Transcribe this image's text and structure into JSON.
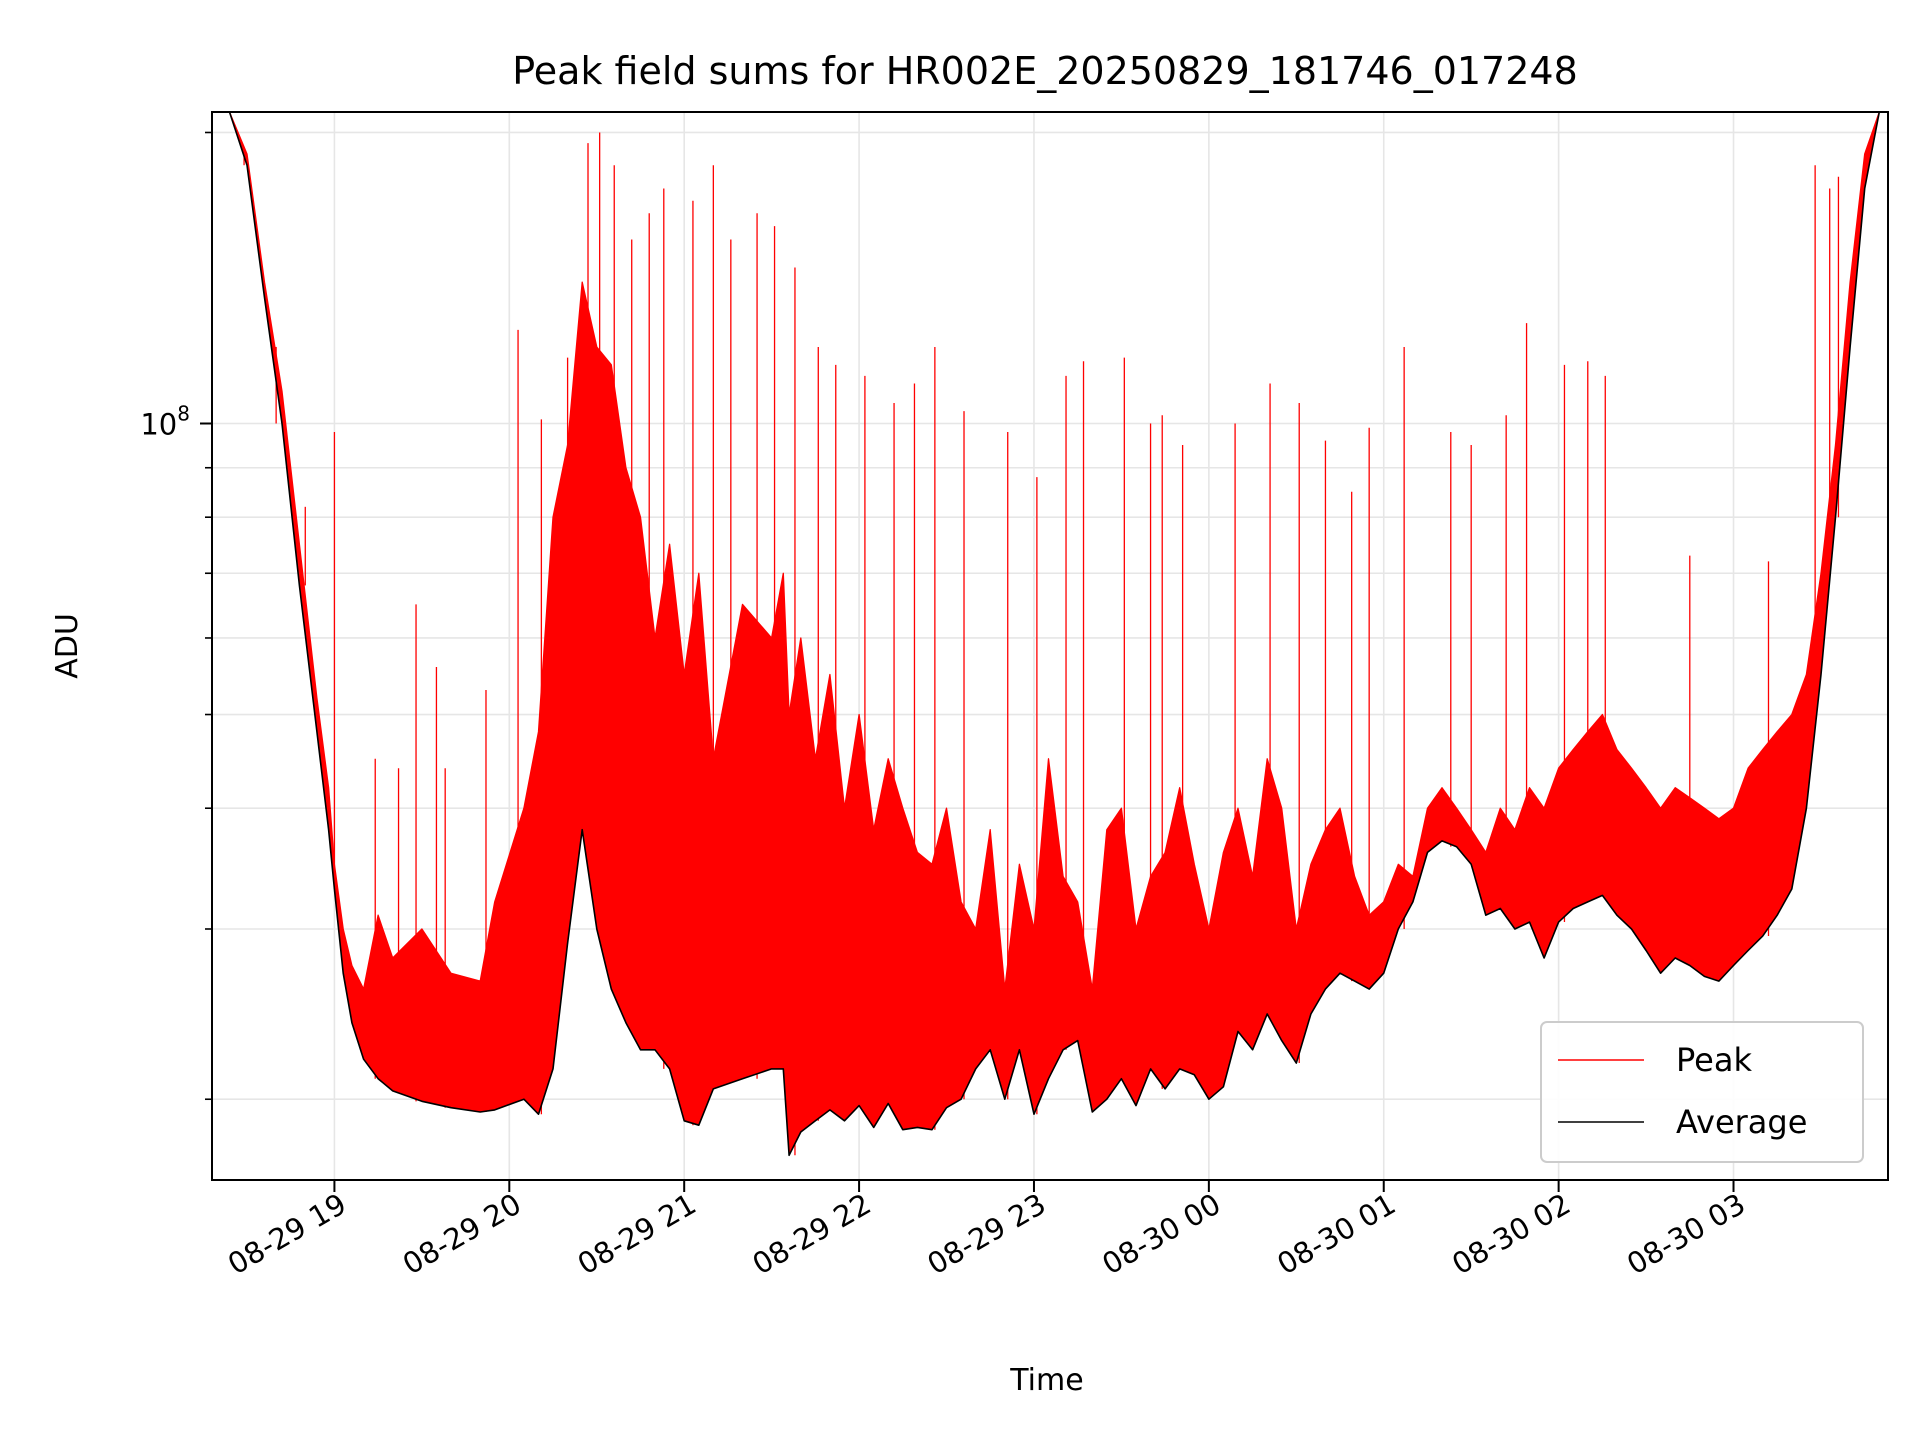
{
  "chart_data": {
    "type": "line",
    "title": "Peak field sums for HR002E_20250829_181746_017248",
    "xlabel": "Time",
    "ylabel": "ADU",
    "y_scale": "log",
    "ylim": [
      16500000,
      210000000
    ],
    "xlim": [
      "2025-08-29 18:18",
      "2025-08-30 03:53"
    ],
    "x_ticks": [
      "2025-08-29 19:00",
      "2025-08-29 20:00",
      "2025-08-29 21:00",
      "2025-08-29 22:00",
      "2025-08-29 23:00",
      "2025-08-30 00:00",
      "2025-08-30 01:00",
      "2025-08-30 02:00",
      "2025-08-30 03:00"
    ],
    "x_tick_labels": [
      "08-29 19",
      "08-29 20",
      "08-29 21",
      "08-29 22",
      "08-29 23",
      "08-30 00",
      "08-30 01",
      "08-30 02",
      "08-30 03"
    ],
    "y_major_tick": {
      "value": 100000000,
      "label_base": "10",
      "label_exp": "8"
    },
    "y_minor_ticks": [
      20000000,
      30000000,
      40000000,
      50000000,
      60000000,
      70000000,
      80000000,
      90000000,
      200000000
    ],
    "grid": true,
    "legend": {
      "position": "lower right",
      "entries": [
        "Peak",
        "Average"
      ]
    },
    "series": [
      {
        "name": "Average",
        "color": "#000000",
        "x": [
          "2025-08-29 18:18",
          "2025-08-29 18:24",
          "2025-08-29 18:30",
          "2025-08-29 18:36",
          "2025-08-29 18:42",
          "2025-08-29 18:48",
          "2025-08-29 18:54",
          "2025-08-29 18:58",
          "2025-08-29 19:00",
          "2025-08-29 19:03",
          "2025-08-29 19:06",
          "2025-08-29 19:10",
          "2025-08-29 19:15",
          "2025-08-29 19:20",
          "2025-08-29 19:30",
          "2025-08-29 19:40",
          "2025-08-29 19:50",
          "2025-08-29 19:55",
          "2025-08-29 20:05",
          "2025-08-29 20:10",
          "2025-08-29 20:15",
          "2025-08-29 20:20",
          "2025-08-29 20:25",
          "2025-08-29 20:30",
          "2025-08-29 20:35",
          "2025-08-29 20:40",
          "2025-08-29 20:45",
          "2025-08-29 20:50",
          "2025-08-29 20:55",
          "2025-08-29 21:00",
          "2025-08-29 21:05",
          "2025-08-29 21:10",
          "2025-08-29 21:20",
          "2025-08-29 21:30",
          "2025-08-29 21:34",
          "2025-08-29 21:36",
          "2025-08-29 21:40",
          "2025-08-29 21:45",
          "2025-08-29 21:50",
          "2025-08-29 21:55",
          "2025-08-29 22:00",
          "2025-08-29 22:05",
          "2025-08-29 22:10",
          "2025-08-29 22:15",
          "2025-08-29 22:20",
          "2025-08-29 22:25",
          "2025-08-29 22:30",
          "2025-08-29 22:35",
          "2025-08-29 22:40",
          "2025-08-29 22:45",
          "2025-08-29 22:50",
          "2025-08-29 22:55",
          "2025-08-29 23:00",
          "2025-08-29 23:05",
          "2025-08-29 23:10",
          "2025-08-29 23:15",
          "2025-08-29 23:20",
          "2025-08-29 23:25",
          "2025-08-29 23:30",
          "2025-08-29 23:35",
          "2025-08-29 23:40",
          "2025-08-29 23:45",
          "2025-08-29 23:50",
          "2025-08-29 23:55",
          "2025-08-30 00:00",
          "2025-08-30 00:05",
          "2025-08-30 00:10",
          "2025-08-30 00:15",
          "2025-08-30 00:20",
          "2025-08-30 00:25",
          "2025-08-30 00:30",
          "2025-08-30 00:35",
          "2025-08-30 00:40",
          "2025-08-30 00:45",
          "2025-08-30 00:50",
          "2025-08-30 00:55",
          "2025-08-30 01:00",
          "2025-08-30 01:05",
          "2025-08-30 01:10",
          "2025-08-30 01:15",
          "2025-08-30 01:20",
          "2025-08-30 01:25",
          "2025-08-30 01:30",
          "2025-08-30 01:35",
          "2025-08-30 01:40",
          "2025-08-30 01:45",
          "2025-08-30 01:50",
          "2025-08-30 01:55",
          "2025-08-30 02:00",
          "2025-08-30 02:05",
          "2025-08-30 02:10",
          "2025-08-30 02:15",
          "2025-08-30 02:20",
          "2025-08-30 02:25",
          "2025-08-30 02:30",
          "2025-08-30 02:35",
          "2025-08-30 02:40",
          "2025-08-30 02:45",
          "2025-08-30 02:50",
          "2025-08-30 02:55",
          "2025-08-30 03:00",
          "2025-08-30 03:05",
          "2025-08-30 03:10",
          "2025-08-30 03:15",
          "2025-08-30 03:20",
          "2025-08-30 03:25",
          "2025-08-30 03:30",
          "2025-08-30 03:35",
          "2025-08-30 03:40",
          "2025-08-30 03:45",
          "2025-08-30 03:50",
          "2025-08-30 03:53"
        ],
        "values": [
          210000000,
          210000000,
          185000000,
          135000000,
          100000000,
          68000000,
          48000000,
          38000000,
          33000000,
          27000000,
          24000000,
          22000000,
          21000000,
          20400000,
          19900000,
          19600000,
          19400000,
          19500000,
          20000000,
          19300000,
          21500000,
          29000000,
          38000000,
          30000000,
          26000000,
          24000000,
          22500000,
          22500000,
          21500000,
          19000000,
          18800000,
          20500000,
          21000000,
          21500000,
          21500000,
          17500000,
          18500000,
          19000000,
          19500000,
          19000000,
          19700000,
          18700000,
          19800000,
          18600000,
          18700000,
          18600000,
          19600000,
          20000000,
          21500000,
          22500000,
          20000000,
          22500000,
          19300000,
          21000000,
          22500000,
          23000000,
          19400000,
          20000000,
          21000000,
          19700000,
          21500000,
          20500000,
          21500000,
          21200000,
          20000000,
          20600000,
          23500000,
          22500000,
          24500000,
          23000000,
          21800000,
          24500000,
          26000000,
          27000000,
          26500000,
          26000000,
          27000000,
          30000000,
          32000000,
          36000000,
          37000000,
          36500000,
          35000000,
          31000000,
          31500000,
          30000000,
          30500000,
          28000000,
          30500000,
          31500000,
          32000000,
          32500000,
          31000000,
          30000000,
          28500000,
          27000000,
          28000000,
          27500000,
          26800000,
          26500000,
          27500000,
          28500000,
          29500000,
          31000000,
          33000000,
          40000000,
          55000000,
          80000000,
          120000000,
          175000000,
          210000000,
          210000000
        ]
      },
      {
        "name": "Peak",
        "color": "#ff0000",
        "x": [
          "2025-08-29 18:18",
          "2025-08-29 18:24",
          "2025-08-29 18:30",
          "2025-08-29 18:36",
          "2025-08-29 18:42",
          "2025-08-29 18:48",
          "2025-08-29 18:54",
          "2025-08-29 18:58",
          "2025-08-29 19:00",
          "2025-08-29 19:03",
          "2025-08-29 19:06",
          "2025-08-29 19:10",
          "2025-08-29 19:15",
          "2025-08-29 19:20",
          "2025-08-29 19:30",
          "2025-08-29 19:40",
          "2025-08-29 19:50",
          "2025-08-29 19:55",
          "2025-08-29 20:05",
          "2025-08-29 20:10",
          "2025-08-29 20:15",
          "2025-08-29 20:20",
          "2025-08-29 20:25",
          "2025-08-29 20:30",
          "2025-08-29 20:35",
          "2025-08-29 20:40",
          "2025-08-29 20:45",
          "2025-08-29 20:50",
          "2025-08-29 20:55",
          "2025-08-29 21:00",
          "2025-08-29 21:05",
          "2025-08-29 21:10",
          "2025-08-29 21:20",
          "2025-08-29 21:30",
          "2025-08-29 21:34",
          "2025-08-29 21:36",
          "2025-08-29 21:40",
          "2025-08-29 21:45",
          "2025-08-29 21:50",
          "2025-08-29 21:55",
          "2025-08-29 22:00",
          "2025-08-29 22:05",
          "2025-08-29 22:10",
          "2025-08-29 22:15",
          "2025-08-29 22:20",
          "2025-08-29 22:25",
          "2025-08-29 22:30",
          "2025-08-29 22:35",
          "2025-08-29 22:40",
          "2025-08-29 22:45",
          "2025-08-29 22:50",
          "2025-08-29 22:55",
          "2025-08-29 23:00",
          "2025-08-29 23:05",
          "2025-08-29 23:10",
          "2025-08-29 23:15",
          "2025-08-29 23:20",
          "2025-08-29 23:25",
          "2025-08-29 23:30",
          "2025-08-29 23:35",
          "2025-08-29 23:40",
          "2025-08-29 23:45",
          "2025-08-29 23:50",
          "2025-08-29 23:55",
          "2025-08-30 00:00",
          "2025-08-30 00:05",
          "2025-08-30 00:10",
          "2025-08-30 00:15",
          "2025-08-30 00:20",
          "2025-08-30 00:25",
          "2025-08-30 00:30",
          "2025-08-30 00:35",
          "2025-08-30 00:40",
          "2025-08-30 00:45",
          "2025-08-30 00:50",
          "2025-08-30 00:55",
          "2025-08-30 01:00",
          "2025-08-30 01:05",
          "2025-08-30 01:10",
          "2025-08-30 01:15",
          "2025-08-30 01:20",
          "2025-08-30 01:25",
          "2025-08-30 01:30",
          "2025-08-30 01:35",
          "2025-08-30 01:40",
          "2025-08-30 01:45",
          "2025-08-30 01:50",
          "2025-08-30 01:55",
          "2025-08-30 02:00",
          "2025-08-30 02:05",
          "2025-08-30 02:10",
          "2025-08-30 02:15",
          "2025-08-30 02:20",
          "2025-08-30 02:25",
          "2025-08-30 02:30",
          "2025-08-30 02:35",
          "2025-08-30 02:40",
          "2025-08-30 02:45",
          "2025-08-30 02:50",
          "2025-08-30 02:55",
          "2025-08-30 03:00",
          "2025-08-30 03:05",
          "2025-08-30 03:10",
          "2025-08-30 03:15",
          "2025-08-30 03:20",
          "2025-08-30 03:25",
          "2025-08-30 03:30",
          "2025-08-30 03:35",
          "2025-08-30 03:40",
          "2025-08-30 03:45",
          "2025-08-30 03:50",
          "2025-08-30 03:53"
        ],
        "values": [
          210000000,
          210000000,
          190000000,
          140000000,
          108000000,
          75000000,
          52000000,
          42000000,
          35000000,
          30000000,
          27500000,
          26000000,
          31000000,
          28000000,
          30000000,
          27000000,
          26500000,
          32000000,
          40000000,
          48000000,
          80000000,
          95000000,
          140000000,
          120000000,
          115000000,
          90000000,
          80000000,
          60000000,
          75000000,
          55000000,
          70000000,
          45000000,
          65000000,
          60000000,
          70000000,
          50000000,
          60000000,
          45000000,
          55000000,
          40000000,
          50000000,
          38000000,
          45000000,
          40000000,
          36000000,
          35000000,
          40000000,
          32000000,
          30000000,
          38000000,
          26000000,
          35000000,
          30000000,
          45000000,
          34000000,
          32000000,
          26000000,
          38000000,
          40000000,
          30000000,
          34000000,
          36000000,
          42000000,
          35000000,
          30000000,
          36000000,
          40000000,
          34000000,
          45000000,
          40000000,
          30000000,
          35000000,
          38000000,
          40000000,
          34000000,
          31000000,
          32000000,
          35000000,
          34000000,
          40000000,
          42000000,
          40000000,
          38000000,
          36000000,
          40000000,
          38000000,
          42000000,
          40000000,
          44000000,
          46000000,
          48000000,
          50000000,
          46000000,
          44000000,
          42000000,
          40000000,
          42000000,
          41000000,
          40000000,
          39000000,
          40000000,
          44000000,
          46000000,
          48000000,
          50000000,
          55000000,
          70000000,
          95000000,
          140000000,
          190000000,
          210000000,
          210000000
        ]
      }
    ],
    "peak_spikes": {
      "x": [
        "2025-08-29 18:29",
        "2025-08-29 18:40",
        "2025-08-29 18:50",
        "2025-08-29 19:00",
        "2025-08-29 19:14",
        "2025-08-29 19:22",
        "2025-08-29 19:28",
        "2025-08-29 19:35",
        "2025-08-29 19:38",
        "2025-08-29 19:52",
        "2025-08-29 20:03",
        "2025-08-29 20:11",
        "2025-08-29 20:20",
        "2025-08-29 20:27",
        "2025-08-29 20:31",
        "2025-08-29 20:36",
        "2025-08-29 20:42",
        "2025-08-29 20:48",
        "2025-08-29 20:53",
        "2025-08-29 21:03",
        "2025-08-29 21:10",
        "2025-08-29 21:16",
        "2025-08-29 21:25",
        "2025-08-29 21:31",
        "2025-08-29 21:38",
        "2025-08-29 21:46",
        "2025-08-29 21:52",
        "2025-08-29 22:02",
        "2025-08-29 22:12",
        "2025-08-29 22:19",
        "2025-08-29 22:26",
        "2025-08-29 22:36",
        "2025-08-29 22:51",
        "2025-08-29 23:01",
        "2025-08-29 23:11",
        "2025-08-29 23:17",
        "2025-08-29 23:31",
        "2025-08-29 23:40",
        "2025-08-29 23:44",
        "2025-08-29 23:51",
        "2025-08-30 00:09",
        "2025-08-30 00:21",
        "2025-08-30 00:31",
        "2025-08-30 00:40",
        "2025-08-30 00:49",
        "2025-08-30 00:55",
        "2025-08-30 01:07",
        "2025-08-30 01:23",
        "2025-08-30 01:30",
        "2025-08-30 01:42",
        "2025-08-30 01:49",
        "2025-08-30 02:02",
        "2025-08-30 02:10",
        "2025-08-30 02:16",
        "2025-08-30 02:45",
        "2025-08-30 03:12",
        "2025-08-30 03:28",
        "2025-08-30 03:33",
        "2025-08-30 03:36"
      ],
      "values": [
        190000000,
        120000000,
        82000000,
        98000000,
        45000000,
        44000000,
        65000000,
        56000000,
        44000000,
        53000000,
        125000000,
        101000000,
        117000000,
        195000000,
        200000000,
        185000000,
        155000000,
        165000000,
        175000000,
        170000000,
        185000000,
        155000000,
        165000000,
        160000000,
        145000000,
        120000000,
        115000000,
        112000000,
        105000000,
        110000000,
        120000000,
        103000000,
        98000000,
        88000000,
        112000000,
        116000000,
        117000000,
        100000000,
        102000000,
        95000000,
        100000000,
        110000000,
        105000000,
        96000000,
        85000000,
        99000000,
        120000000,
        98000000,
        95000000,
        102000000,
        127000000,
        115000000,
        116000000,
        112000000,
        73000000,
        72000000,
        185000000,
        175000000,
        180000000
      ]
    }
  }
}
